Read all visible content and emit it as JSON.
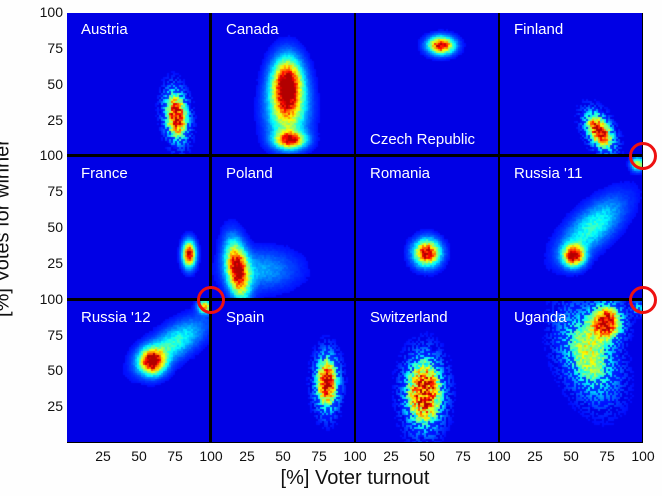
{
  "chart_data": {
    "type": "heatmap",
    "title": "",
    "xlabel": "[%] Voter turnout",
    "ylabel": "[%] Votes for winner",
    "xlim": [
      0,
      100
    ],
    "ylim": [
      0,
      100
    ],
    "x_ticks": [
      25,
      50,
      75,
      100
    ],
    "y_ticks": [
      25,
      50,
      75,
      100
    ],
    "grid": false,
    "colormap": "jet",
    "layout": {
      "rows": 3,
      "cols": 4
    },
    "panels": [
      {
        "name": "Austria",
        "label_pos": "top-left",
        "clusters": [
          {
            "x": 77,
            "y": 27,
            "sx": 5,
            "sy": 11,
            "w": 1.0,
            "rot": 0.1
          }
        ],
        "noise": 0.6,
        "sparse": true
      },
      {
        "name": "Canada",
        "label_pos": "top-left",
        "clusters": [
          {
            "x": 53,
            "y": 50,
            "sx": 7,
            "sy": 12,
            "w": 1.0,
            "rot": 0
          },
          {
            "x": 53,
            "y": 30,
            "sx": 9,
            "sy": 14,
            "w": 0.55,
            "rot": 0
          },
          {
            "x": 55,
            "y": 10,
            "sx": 7,
            "sy": 4,
            "w": 0.85,
            "rot": 0
          }
        ],
        "noise": 0.25,
        "sparse": false
      },
      {
        "name": "Czech Republic",
        "label_pos": "bottom-left",
        "clusters": [
          {
            "x": 60,
            "y": 77,
            "sx": 6,
            "sy": 4,
            "w": 1.0,
            "rot": 0
          }
        ],
        "noise": 0.3,
        "sparse": false
      },
      {
        "name": "Finland",
        "label_pos": "top-left",
        "clusters": [
          {
            "x": 70,
            "y": 16,
            "sx": 5,
            "sy": 9,
            "w": 1.0,
            "rot": 0.5
          }
        ],
        "noise": 0.6,
        "sparse": true
      },
      {
        "name": "France",
        "label_pos": "top-left",
        "clusters": [
          {
            "x": 86,
            "y": 31,
            "sx": 3,
            "sy": 6,
            "w": 1.0,
            "rot": 0
          }
        ],
        "noise": 0.2,
        "sparse": false
      },
      {
        "name": "Poland",
        "label_pos": "top-left",
        "clusters": [
          {
            "x": 18,
            "y": 20,
            "sx": 5,
            "sy": 13,
            "w": 1.0,
            "rot": 0.15
          },
          {
            "x": 35,
            "y": 20,
            "sx": 16,
            "sy": 9,
            "w": 0.2,
            "rot": 0
          }
        ],
        "noise": 0.3,
        "sparse": false
      },
      {
        "name": "Romania",
        "label_pos": "top-left",
        "clusters": [
          {
            "x": 50,
            "y": 32,
            "sx": 6,
            "sy": 6,
            "w": 1.0,
            "rot": 0
          }
        ],
        "noise": 0.4,
        "sparse": false
      },
      {
        "name": "Russia '11",
        "label_pos": "top-left",
        "clusters": [
          {
            "x": 52,
            "y": 30,
            "sx": 5,
            "sy": 5,
            "w": 1.0,
            "rot": 0
          },
          {
            "x": 65,
            "y": 50,
            "sx": 18,
            "sy": 8,
            "w": 0.35,
            "rot": 0.75
          },
          {
            "x": 97,
            "y": 95,
            "sx": 3,
            "sy": 3,
            "w": 0.6,
            "rot": 0
          }
        ],
        "noise": 0.3,
        "sparse": false
      },
      {
        "name": "Russia '12",
        "label_pos": "top-left",
        "clusters": [
          {
            "x": 60,
            "y": 57,
            "sx": 6,
            "sy": 6,
            "w": 1.0,
            "rot": 0
          },
          {
            "x": 75,
            "y": 70,
            "sx": 17,
            "sy": 7,
            "w": 0.35,
            "rot": 0.6
          },
          {
            "x": 97,
            "y": 96,
            "sx": 3,
            "sy": 3,
            "w": 0.7,
            "rot": 0
          }
        ],
        "noise": 0.3,
        "sparse": false
      },
      {
        "name": "Spain",
        "label_pos": "top-left",
        "clusters": [
          {
            "x": 81,
            "y": 42,
            "sx": 5,
            "sy": 12,
            "w": 1.0,
            "rot": 0
          }
        ],
        "noise": 0.5,
        "sparse": true
      },
      {
        "name": "Switzerland",
        "label_pos": "top-left",
        "clusters": [
          {
            "x": 48,
            "y": 35,
            "sx": 8,
            "sy": 15,
            "w": 1.0,
            "rot": 0
          }
        ],
        "noise": 0.8,
        "sparse": true
      },
      {
        "name": "Uganda",
        "label_pos": "top-left",
        "clusters": [
          {
            "x": 75,
            "y": 85,
            "sx": 7,
            "sy": 8,
            "w": 1.0,
            "rot": 0
          },
          {
            "x": 62,
            "y": 62,
            "sx": 11,
            "sy": 20,
            "w": 0.55,
            "rot": 0.35
          },
          {
            "x": 97,
            "y": 95,
            "sx": 3,
            "sy": 3,
            "w": 0.3,
            "rot": 0
          }
        ],
        "noise": 0.5,
        "sparse": true
      }
    ],
    "annotations": [
      {
        "type": "red-circle",
        "panel": "Russia '11",
        "position": "top-right corner (100,100)"
      },
      {
        "type": "red-circle",
        "panel": "Russia '12",
        "position": "top-right corner (100,100)"
      },
      {
        "type": "red-circle",
        "panel": "Uganda",
        "position": "top-right corner (100,100)"
      }
    ]
  },
  "axes": {
    "xlabel": "[%] Voter turnout",
    "ylabel": "[%] Votes for winner",
    "x_tick_labels": [
      "25",
      "50",
      "75",
      "100"
    ],
    "y_tick_labels": [
      "100",
      "75",
      "50",
      "25"
    ]
  },
  "colors": {
    "background": "#00008f",
    "divider": "#000000",
    "annotation_ring": "#ee1111"
  }
}
